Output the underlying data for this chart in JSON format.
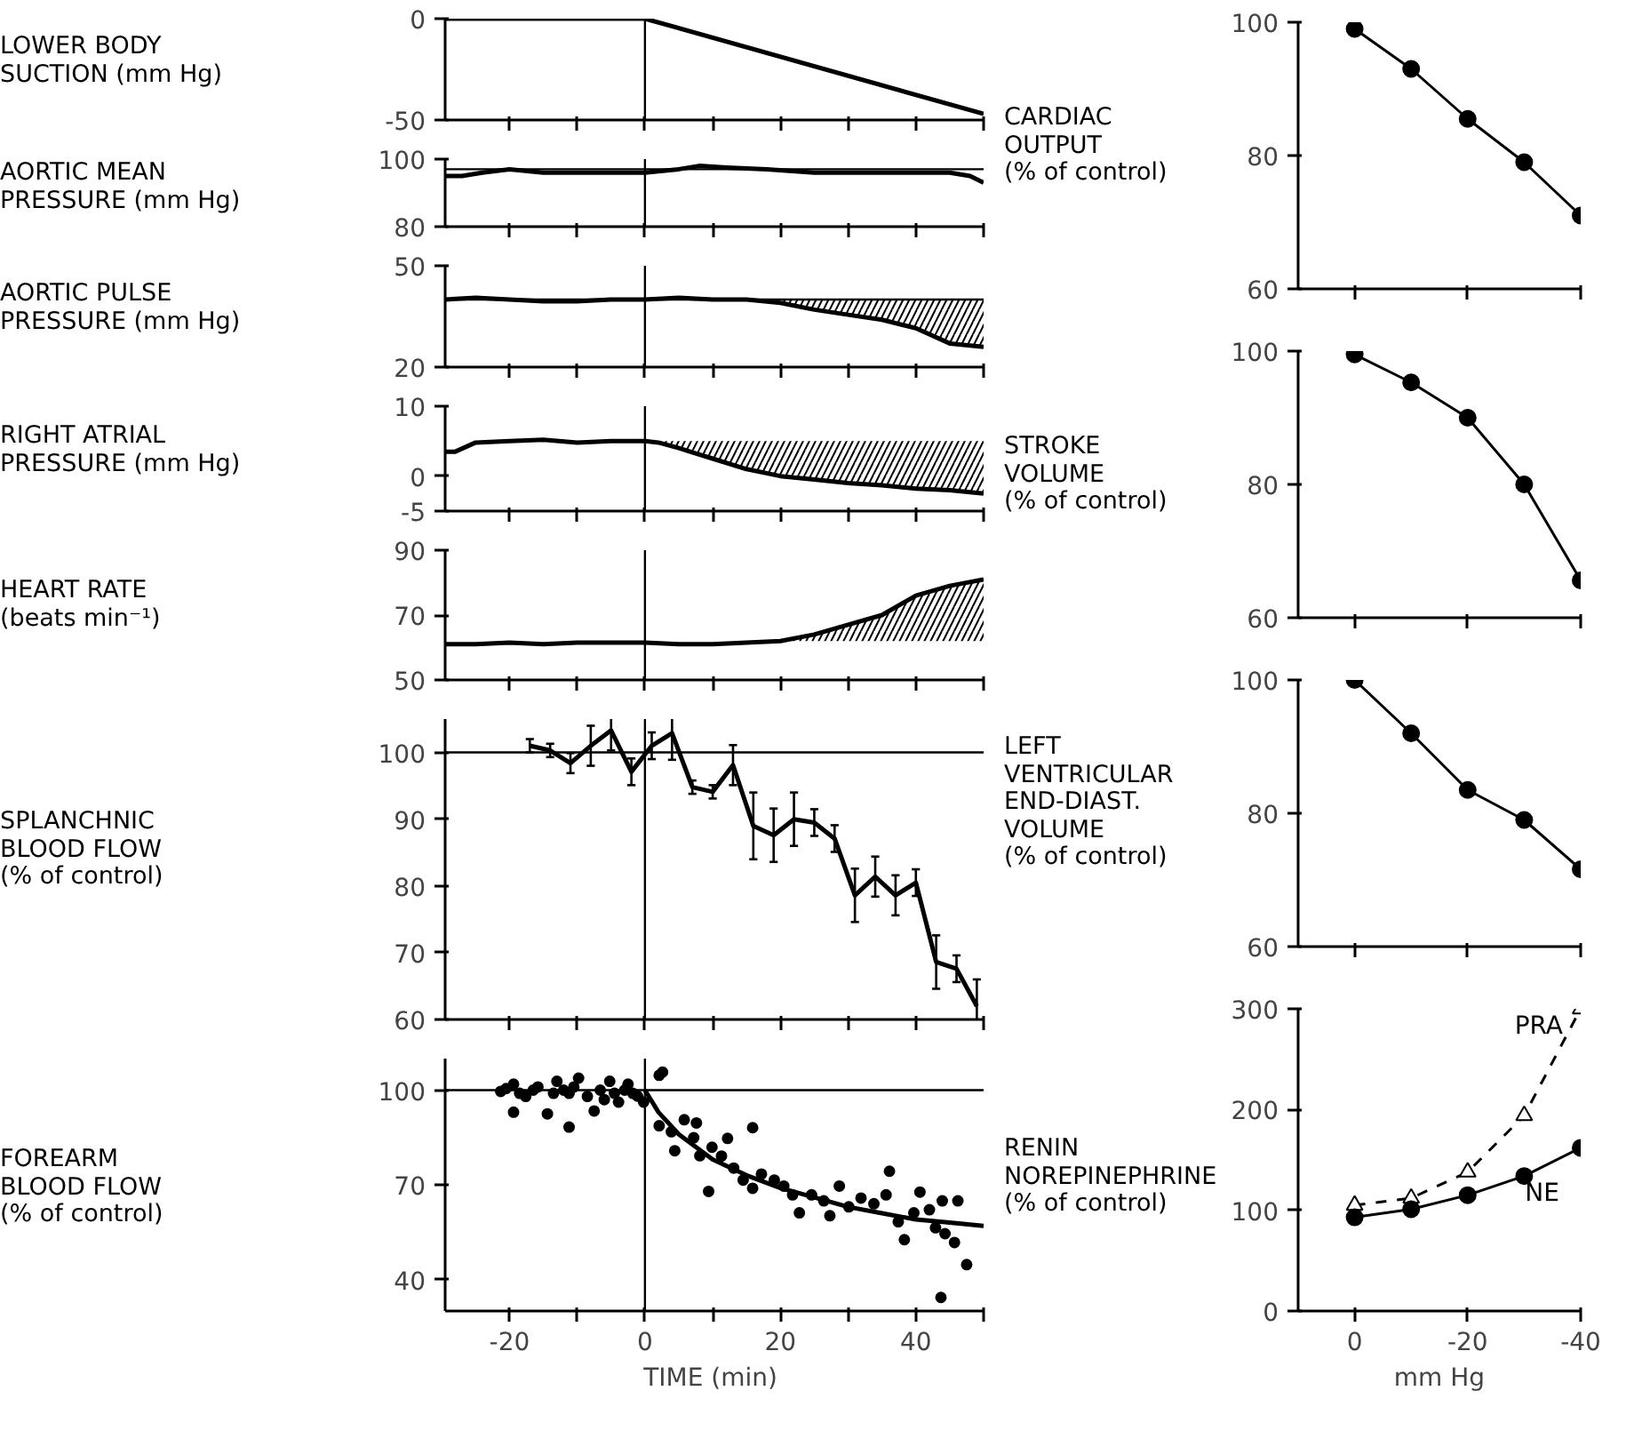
{
  "chart_data": [
    {
      "type": "line",
      "ylabel": "LOWER BODY\nSUCTION  (mm Hg)",
      "xlim": [
        -29.5,
        50
      ],
      "ylim": [
        -50,
        0
      ],
      "xticks": [
        -20,
        {
          "value": -10,
          "label": null
        },
        0,
        {
          "value": 10,
          "label": null
        },
        20,
        {
          "value": 30,
          "label": null
        },
        40,
        {
          "value": 50,
          "label": null
        }
      ],
      "yticks": [
        -50,
        0
      ],
      "tick_labels": "y",
      "series": [
        {
          "color": "#000000",
          "x": [
            -29.5,
            0,
            50
          ],
          "values": [
            0,
            0,
            -47
          ]
        }
      ],
      "ref_lines": [
        {
          "axis": "x",
          "value": 0,
          "color": "#000000"
        }
      ]
    },
    {
      "type": "line",
      "ylabel": "CARDIAC\nOUTPUT\n(% of control)",
      "xlim": [
        10,
        -40
      ],
      "ylim": [
        60,
        100
      ],
      "xticks": [
        0,
        -20,
        -40
      ],
      "yticks": [
        60,
        80,
        100
      ],
      "tick_labels": "y",
      "marker": "circle",
      "series": [
        {
          "color": "#000000",
          "x": [
            0,
            -10,
            -20,
            -30,
            -40
          ],
          "values": [
            99,
            93,
            85.5,
            79,
            71
          ]
        }
      ]
    },
    {
      "type": "line",
      "ylabel": "AORTIC  MEAN\nPRESSURE (mm Hg)",
      "xlim": [
        -29.5,
        50
      ],
      "ylim": [
        80,
        100
      ],
      "xticks": [
        -20,
        {
          "value": -10,
          "label": null
        },
        0,
        {
          "value": 10,
          "label": null
        },
        20,
        {
          "value": 30,
          "label": null
        },
        40,
        {
          "value": 50,
          "label": null
        }
      ],
      "yticks": [
        80,
        100
      ],
      "tick_labels": "y",
      "series": [
        {
          "color": "#000000",
          "x": [
            -29.5,
            -27,
            -24,
            -20,
            -15,
            -10,
            -5,
            0,
            5,
            8,
            12,
            18,
            25,
            30,
            35,
            40,
            45,
            48,
            50
          ],
          "values": [
            95,
            95,
            96,
            97,
            96,
            96,
            96,
            96,
            97,
            98,
            97.5,
            97,
            96,
            96,
            96,
            96,
            96,
            95,
            93
          ]
        }
      ],
      "ref_lines": [
        {
          "axis": "x",
          "value": 0,
          "color": "#000000"
        },
        {
          "axis": "y",
          "value": 97,
          "color": "#000000"
        }
      ]
    },
    {
      "type": "line",
      "ylabel": "AORTIC  PULSE\nPRESSURE  (mm Hg)",
      "xlim": [
        -29.5,
        50
      ],
      "ylim": [
        20,
        50
      ],
      "xticks": [
        -20,
        {
          "value": -10,
          "label": null
        },
        0,
        {
          "value": 10,
          "label": null
        },
        20,
        {
          "value": 30,
          "label": null
        },
        40,
        {
          "value": 50,
          "label": null
        }
      ],
      "yticks": [
        20,
        50
      ],
      "tick_labels": "y",
      "series": [
        {
          "color": "#000000",
          "x": [
            -29.5,
            -25,
            -20,
            -15,
            -10,
            -5,
            0,
            5,
            10,
            15,
            20,
            25,
            30,
            35,
            40,
            45,
            50
          ],
          "values": [
            40,
            40.5,
            40,
            39.5,
            39.5,
            40,
            40,
            40.5,
            40,
            40,
            39,
            37,
            35.5,
            34,
            31.5,
            27,
            26
          ],
          "lower": [
            null,
            null,
            null,
            null,
            null,
            null,
            null,
            null,
            null,
            null,
            39,
            37,
            35.5,
            34,
            31.5,
            27,
            26
          ],
          "upper": [
            null,
            null,
            null,
            null,
            null,
            null,
            null,
            null,
            null,
            null,
            40,
            40,
            40,
            40,
            40,
            40,
            40
          ]
        }
      ],
      "ref_lines": [
        {
          "axis": "x",
          "value": 0,
          "color": "#000000"
        },
        {
          "axis": "y",
          "value": 40,
          "color": "#000000"
        }
      ]
    },
    {
      "type": "line",
      "ylabel": "STROKE\nVOLUME\n(% of control)",
      "xlim": [
        10,
        -40
      ],
      "ylim": [
        60,
        100
      ],
      "xticks": [
        0,
        -20,
        -40
      ],
      "yticks": [
        60,
        80,
        100
      ],
      "tick_labels": "y",
      "marker": "circle",
      "series": [
        {
          "color": "#000000",
          "x": [
            0,
            -10,
            -20,
            -30,
            -40
          ],
          "values": [
            99.5,
            95.3,
            90,
            80,
            65.6
          ]
        }
      ]
    },
    {
      "type": "line",
      "ylabel": "RIGHT  ATRIAL\nPRESSURE  (mm Hg)",
      "xlim": [
        -29.5,
        50
      ],
      "ylim": [
        -5,
        10
      ],
      "xticks": [
        -20,
        {
          "value": -10,
          "label": null
        },
        0,
        {
          "value": 10,
          "label": null
        },
        20,
        {
          "value": 30,
          "label": null
        },
        40,
        {
          "value": 50,
          "label": null
        }
      ],
      "yticks": [
        -5,
        0,
        10
      ],
      "tick_labels": "y",
      "series": [
        {
          "color": "#000000",
          "x": [
            -29.5,
            -28,
            -25,
            -20,
            -15,
            -10,
            -5,
            0,
            2,
            5,
            10,
            15,
            20,
            25,
            30,
            35,
            40,
            45,
            50
          ],
          "values": [
            3.5,
            3.5,
            4.8,
            5,
            5.2,
            4.8,
            5,
            5,
            4.8,
            4,
            2.5,
            1,
            0,
            -0.5,
            -1,
            -1.3,
            -1.8,
            -2,
            -2.5
          ],
          "lower": [
            null,
            null,
            null,
            null,
            null,
            null,
            null,
            null,
            4.8,
            4,
            2.5,
            1,
            0,
            -0.5,
            -1,
            -1.3,
            -1.8,
            -2,
            -2.5
          ],
          "upper": [
            null,
            null,
            null,
            null,
            null,
            null,
            null,
            null,
            5,
            5,
            5,
            5,
            5,
            5,
            5,
            5,
            5,
            5,
            5
          ]
        }
      ],
      "ref_lines": [
        {
          "axis": "x",
          "value": 0,
          "color": "#000000"
        }
      ]
    },
    {
      "type": "line",
      "ylabel": "HEART  RATE\n(beats  min⁻¹)",
      "xlim": [
        -29.5,
        50
      ],
      "ylim": [
        50,
        90
      ],
      "xticks": [
        -20,
        {
          "value": -10,
          "label": null
        },
        0,
        {
          "value": 10,
          "label": null
        },
        20,
        {
          "value": 30,
          "label": null
        },
        40,
        {
          "value": 50,
          "label": null
        }
      ],
      "yticks": [
        50,
        70,
        90
      ],
      "tick_labels": "y",
      "series": [
        {
          "color": "#000000",
          "x": [
            -29.5,
            -25,
            -20,
            -15,
            -10,
            -5,
            0,
            5,
            10,
            15,
            20,
            25,
            30,
            35,
            40,
            45,
            50
          ],
          "values": [
            61,
            61,
            61.5,
            61,
            61.5,
            61.5,
            61.5,
            61,
            61,
            61.5,
            62,
            64,
            67,
            70,
            76,
            79,
            81
          ],
          "lower": [
            null,
            null,
            null,
            null,
            null,
            null,
            null,
            null,
            null,
            null,
            62,
            64,
            67,
            70,
            76,
            79,
            81
          ],
          "upper": [
            null,
            null,
            null,
            null,
            null,
            null,
            null,
            null,
            null,
            null,
            62,
            62,
            62,
            62,
            62,
            62,
            62
          ]
        }
      ],
      "ref_lines": [
        {
          "axis": "x",
          "value": 0,
          "color": "#000000"
        }
      ]
    },
    {
      "type": "line",
      "ylabel": "LEFT\nVENTRICULAR\nEND-DIAST.\nVOLUME\n(% of control)",
      "xlim": [
        10,
        -40
      ],
      "ylim": [
        60,
        100
      ],
      "xticks": [
        0,
        -20,
        -40
      ],
      "yticks": [
        60,
        80,
        100
      ],
      "tick_labels": "y",
      "marker": "circle",
      "series": [
        {
          "color": "#000000",
          "x": [
            0,
            -10,
            -20,
            -30,
            -40
          ],
          "values": [
            100,
            92,
            83.5,
            79,
            71.6
          ]
        }
      ]
    },
    {
      "type": "line",
      "ylabel": "SPLANCHNIC\nBLOOD  FLOW\n(% of  control)",
      "xlim": [
        -29.5,
        50
      ],
      "ylim": [
        60,
        105
      ],
      "xticks": [
        -20,
        {
          "value": -10,
          "label": null
        },
        0,
        {
          "value": 10,
          "label": null
        },
        20,
        {
          "value": 30,
          "label": null
        },
        40,
        {
          "value": 50,
          "label": null
        }
      ],
      "yticks": [
        60,
        70,
        80,
        90,
        100
      ],
      "tick_labels": "y",
      "series": [
        {
          "color": "#000000",
          "x": [
            -17,
            -14,
            -11,
            -8,
            -5,
            -2,
            1,
            4,
            7,
            10,
            13,
            16,
            19,
            22,
            25,
            28,
            31,
            34,
            37,
            40,
            43,
            46,
            49
          ],
          "values": [
            101,
            100.3,
            98.4,
            101,
            103.3,
            97.1,
            101,
            102.9,
            94.8,
            94.1,
            98.1,
            89,
            87.6,
            90,
            89.5,
            87.1,
            78.6,
            81.4,
            78.6,
            80.5,
            68.6,
            67.6,
            62
          ],
          "errors": [
            1,
            1,
            1.5,
            3,
            3,
            2,
            2,
            4,
            1,
            1,
            3,
            5,
            4,
            4,
            2,
            2,
            4,
            3,
            3,
            2,
            4,
            2,
            4
          ]
        }
      ],
      "ref_lines": [
        {
          "axis": "x",
          "value": 0,
          "color": "#000000"
        },
        {
          "axis": "y",
          "value": 100,
          "color": "#000000"
        }
      ]
    },
    {
      "type": "line",
      "ylabel": "RENIN\nNOREPINEPHRINE\n(% of control)",
      "xlabel": "mm Hg",
      "xlim": [
        10,
        -40
      ],
      "ylim": [
        0,
        300
      ],
      "xticks": [
        0,
        -20,
        -40
      ],
      "yticks": [
        0,
        100,
        200,
        300
      ],
      "series": [
        {
          "name": "PRA",
          "color": "#000000",
          "marker": "triangle",
          "line_style": "dashed",
          "x": [
            0,
            -10,
            -20,
            -30,
            -40
          ],
          "values": [
            105,
            112,
            138,
            194,
            300
          ]
        },
        {
          "name": "NE",
          "color": "#000000",
          "marker": "circle",
          "line_style": "solid",
          "x": [
            0,
            -10,
            -20,
            -30,
            -40
          ],
          "values": [
            93,
            101,
            115,
            134,
            162
          ]
        }
      ]
    },
    {
      "type": "scatter",
      "ylabel": "FOREARM\nBLOOD  FLOW\n(% of  control)",
      "xlabel": "TIME  (min)",
      "xlim": [
        -29.5,
        50
      ],
      "ylim": [
        30,
        110
      ],
      "xticks": [
        -20,
        {
          "value": -10,
          "label": null
        },
        0,
        {
          "value": 10,
          "label": null
        },
        20,
        {
          "value": 30,
          "label": null
        },
        40,
        {
          "value": 50,
          "label": null
        }
      ],
      "yticks": [
        40,
        70,
        100
      ],
      "series": [
        {
          "color": "#000000",
          "x": [
            -21.3,
            -20.5,
            -19.4,
            -19.4,
            -18.5,
            -17.6,
            -16.5,
            -15.8,
            -14.4,
            -13.5,
            -13,
            -12,
            -11.2,
            -11.2,
            -10.5,
            -9.8,
            -8.5,
            -7.5,
            -6.6,
            -6,
            -5.2,
            -4.5,
            -3.9,
            -3,
            -2.5,
            -1.8,
            -1.1,
            -0.2,
            2.1,
            2.6,
            2.1,
            3.9,
            4.4,
            5.8,
            7.2,
            7.6,
            8.1,
            9.4,
            9.9,
            11.3,
            12.2,
            13.1,
            14.5,
            15.9,
            15.9,
            17.2,
            19.1,
            20.5,
            21.8,
            22.8,
            24.6,
            26.4,
            27.3,
            28.7,
            30.1,
            31.9,
            33.8,
            35.6,
            36.1,
            37.4,
            38.3,
            39.7,
            40.6,
            42,
            42.9,
            43.9,
            44.3,
            45.7,
            46.2,
            43.7,
            47.5
          ],
          "values": [
            99.6,
            100.5,
            101.9,
            93,
            99,
            98,
            100,
            101,
            92.5,
            99,
            102.8,
            100,
            99,
            88.3,
            101,
            103.8,
            98,
            93.4,
            100,
            97,
            102.8,
            99,
            96.2,
            100,
            101.9,
            99,
            98.1,
            96.2,
            104.7,
            105.7,
            88.7,
            86.8,
            80.8,
            90.6,
            84.9,
            89.6,
            79.2,
            67.9,
            81.9,
            79.1,
            84.7,
            75.3,
            71.5,
            88.1,
            68.9,
            73.4,
            71.5,
            69.6,
            66.8,
            61.1,
            66.8,
            64.9,
            60.2,
            69.6,
            63,
            65.8,
            64,
            66.8,
            74.3,
            58.3,
            52.6,
            61.1,
            67.7,
            62.1,
            56.4,
            64.9,
            54.5,
            51.7,
            64.9,
            34.3,
            44.7
          ]
        },
        {
          "type": "line",
          "color": "#000000",
          "x": [
            0,
            2,
            5,
            10,
            15,
            20,
            25,
            30,
            35,
            40,
            45,
            50
          ],
          "values": [
            100,
            93,
            86,
            78,
            73,
            69,
            66,
            63,
            61,
            59,
            58,
            57
          ]
        }
      ],
      "ref_lines": [
        {
          "axis": "x",
          "value": 0,
          "color": "#000000"
        },
        {
          "axis": "y",
          "value": 100,
          "color": "#000000"
        }
      ]
    }
  ]
}
